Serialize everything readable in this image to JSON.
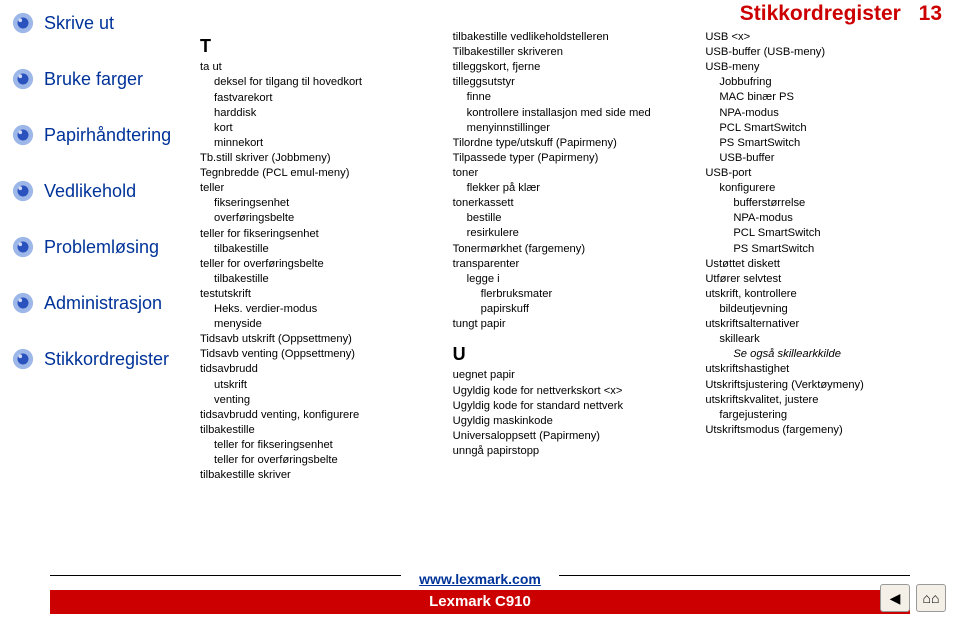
{
  "colors": {
    "link_blue": "#003399",
    "accent_red": "#cc0000",
    "text": "#000000",
    "bg": "#ffffff",
    "bullet_outer": "#9db8e8",
    "bullet_inner": "#2a52be"
  },
  "sidebar": {
    "items": [
      {
        "name": "nav-skrive-ut",
        "label": "Skrive ut"
      },
      {
        "name": "nav-bruke-farger",
        "label": "Bruke farger"
      },
      {
        "name": "nav-papirhandtering",
        "label": "Papirhåndtering"
      },
      {
        "name": "nav-vedlikehold",
        "label": "Vedlikehold"
      },
      {
        "name": "nav-problemlosing",
        "label": "Problemløsing"
      },
      {
        "name": "nav-administrasjon",
        "label": "Administrasjon"
      },
      {
        "name": "nav-stikkordregister",
        "label": "Stikkordregister"
      }
    ]
  },
  "header": {
    "title": "Stikkordregister",
    "page": "13"
  },
  "index": {
    "col1": {
      "letter": "T",
      "lines": [
        {
          "t": "ta ut",
          "i": 0
        },
        {
          "t": "deksel for tilgang til hovedkort",
          "i": 1
        },
        {
          "t": "fastvarekort",
          "i": 1
        },
        {
          "t": "harddisk",
          "i": 1
        },
        {
          "t": "kort",
          "i": 1
        },
        {
          "t": "minnekort",
          "i": 1
        },
        {
          "t": "Tb.still skriver (Jobbmeny)",
          "i": 0
        },
        {
          "t": "Tegnbredde (PCL emul-meny)",
          "i": 0
        },
        {
          "t": "teller",
          "i": 0
        },
        {
          "t": "fikseringsenhet",
          "i": 1
        },
        {
          "t": "overføringsbelte",
          "i": 1
        },
        {
          "t": "teller for fikseringsenhet",
          "i": 0
        },
        {
          "t": "tilbakestille",
          "i": 1
        },
        {
          "t": "teller for overføringsbelte",
          "i": 0
        },
        {
          "t": "tilbakestille",
          "i": 1
        },
        {
          "t": "testutskrift",
          "i": 0
        },
        {
          "t": "Heks. verdier-modus",
          "i": 1
        },
        {
          "t": "menyside",
          "i": 1
        },
        {
          "t": "Tidsavb utskrift (Oppsettmeny)",
          "i": 0
        },
        {
          "t": "Tidsavb venting (Oppsettmeny)",
          "i": 0
        },
        {
          "t": "tidsavbrudd",
          "i": 0
        },
        {
          "t": "utskrift",
          "i": 1
        },
        {
          "t": "venting",
          "i": 1
        },
        {
          "t": "tidsavbrudd venting, konfigurere",
          "i": 0
        },
        {
          "t": "tilbakestille",
          "i": 0
        },
        {
          "t": "teller for fikseringsenhet",
          "i": 1
        },
        {
          "t": "teller for overføringsbelte",
          "i": 1
        },
        {
          "t": "tilbakestille skriver",
          "i": 0
        }
      ]
    },
    "col2": {
      "lines1": [
        {
          "t": "tilbakestille vedlikeholdstelleren",
          "i": 0
        },
        {
          "t": "Tilbakestiller skriveren",
          "i": 0
        },
        {
          "t": "tilleggskort, fjerne",
          "i": 0
        },
        {
          "t": "tilleggsutstyr",
          "i": 0
        },
        {
          "t": "finne",
          "i": 1
        },
        {
          "t": "kontrollere installasjon med side med menyinnstillinger",
          "i": 1
        },
        {
          "t": "Tilordne type/utskuff (Papirmeny)",
          "i": 0
        },
        {
          "t": "Tilpassede typer (Papirmeny)",
          "i": 0
        },
        {
          "t": "toner",
          "i": 0
        },
        {
          "t": "flekker på klær",
          "i": 1
        },
        {
          "t": "tonerkassett",
          "i": 0
        },
        {
          "t": "bestille",
          "i": 1
        },
        {
          "t": "resirkulere",
          "i": 1
        },
        {
          "t": "Tonermørkhet (fargemeny)",
          "i": 0
        },
        {
          "t": "transparenter",
          "i": 0
        },
        {
          "t": "legge i",
          "i": 1
        },
        {
          "t": "flerbruksmater",
          "i": 2
        },
        {
          "t": "papirskuff",
          "i": 2
        },
        {
          "t": "tungt papir",
          "i": 0
        }
      ],
      "letter": "U",
      "lines2": [
        {
          "t": "uegnet papir",
          "i": 0
        },
        {
          "t": "Ugyldig kode for nettverkskort <x>",
          "i": 0
        },
        {
          "t": "Ugyldig kode for standard nettverk",
          "i": 0
        },
        {
          "t": "Ugyldig maskinkode",
          "i": 0
        },
        {
          "t": "Universaloppsett (Papirmeny)",
          "i": 0
        },
        {
          "t": "unngå papirstopp",
          "i": 0
        }
      ]
    },
    "col3": {
      "lines": [
        {
          "t": "USB <x>",
          "i": 0
        },
        {
          "t": "USB-buffer (USB-meny)",
          "i": 0
        },
        {
          "t": "USB-meny",
          "i": 0
        },
        {
          "t": "Jobbufring",
          "i": 1
        },
        {
          "t": "MAC binær PS",
          "i": 1
        },
        {
          "t": "NPA-modus",
          "i": 1
        },
        {
          "t": "PCL SmartSwitch",
          "i": 1
        },
        {
          "t": "PS SmartSwitch",
          "i": 1
        },
        {
          "t": "USB-buffer",
          "i": 1
        },
        {
          "t": "USB-port",
          "i": 0
        },
        {
          "t": "konfigurere",
          "i": 1
        },
        {
          "t": "bufferstørrelse",
          "i": 2
        },
        {
          "t": "NPA-modus",
          "i": 2
        },
        {
          "t": "PCL SmartSwitch",
          "i": 2
        },
        {
          "t": "PS SmartSwitch",
          "i": 2
        },
        {
          "t": "Ustøttet diskett",
          "i": 0
        },
        {
          "t": "Utfører selvtest",
          "i": 0
        },
        {
          "t": "utskrift, kontrollere",
          "i": 0
        },
        {
          "t": "bildeutjevning",
          "i": 1
        },
        {
          "t": "utskriftsalternativer",
          "i": 0
        },
        {
          "t": "skilleark",
          "i": 1
        },
        {
          "t": "Se også skillearkkilde",
          "i": 2,
          "italic": true
        },
        {
          "t": "utskriftshastighet",
          "i": 0
        },
        {
          "t": "Utskriftsjustering (Verktøymeny)",
          "i": 0
        },
        {
          "t": "utskriftskvalitet, justere",
          "i": 0
        },
        {
          "t": "fargejustering",
          "i": 1
        },
        {
          "t": "Utskriftsmodus (fargemeny)",
          "i": 0
        }
      ]
    }
  },
  "footer": {
    "url": "www.lexmark.com",
    "product": "Lexmark C910",
    "icons": {
      "back": "◀",
      "home": "⌂⌂"
    }
  }
}
